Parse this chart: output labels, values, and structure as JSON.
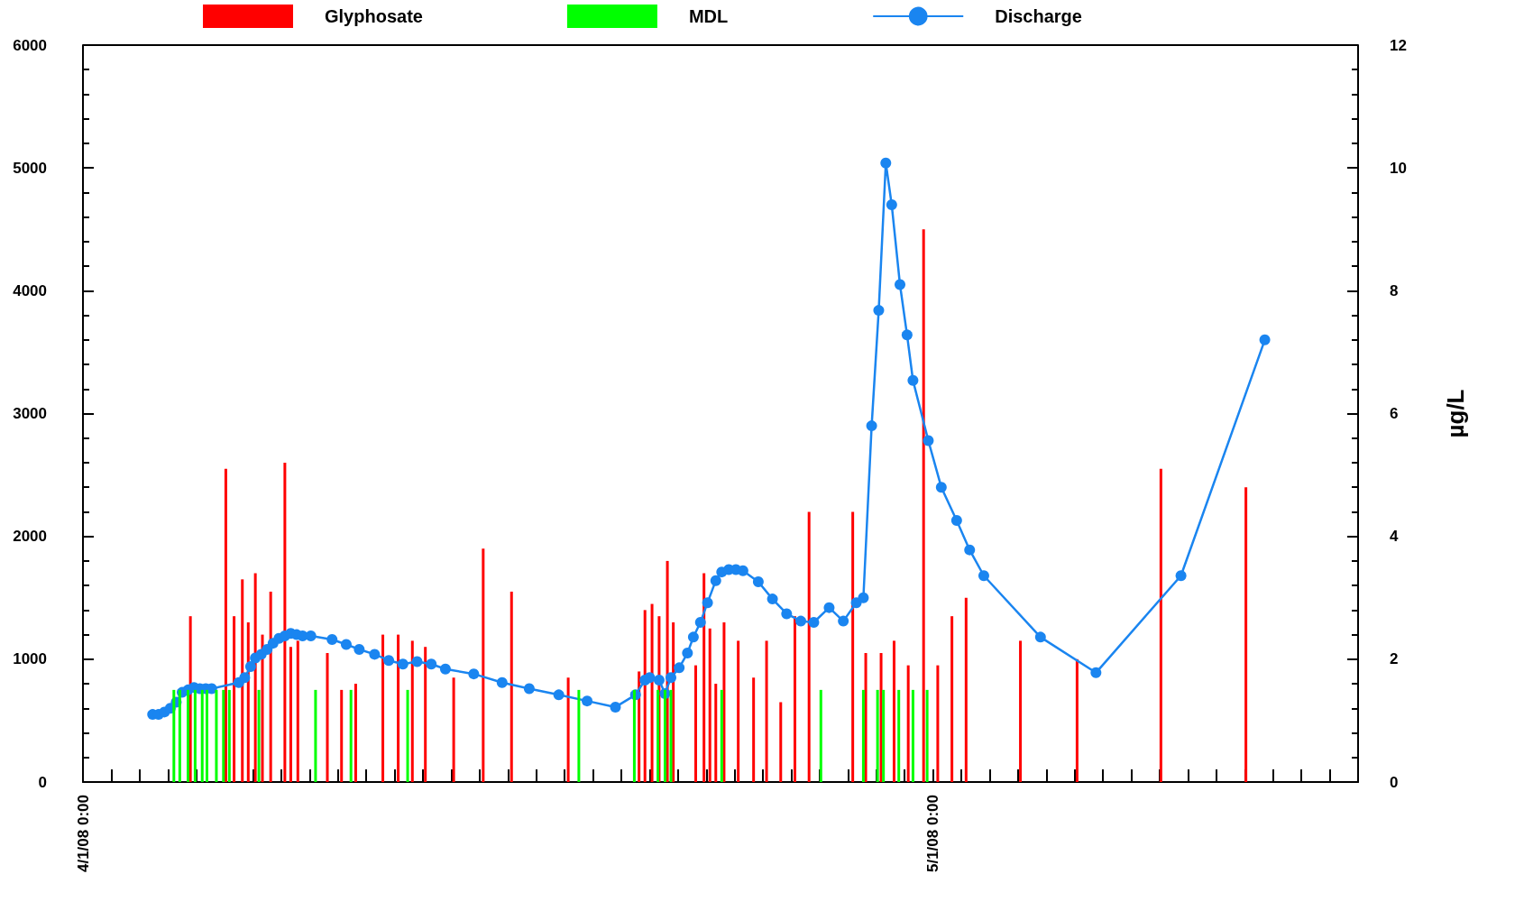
{
  "chart_data": {
    "type": "bar",
    "y2label": "µg/L",
    "legend": "top",
    "grid": false,
    "marker": "circle",
    "line_style": "solid",
    "xlim": [
      "--04-01T00:00",
      "--05-16T00:00"
    ],
    "xticks": [
      {
        "value": "--04-01T00:00",
        "label": "4/1/08 0:00"
      },
      {
        "value": "--04-02T00:00",
        "label": null
      },
      {
        "value": "--04-03T00:00",
        "label": null
      },
      {
        "value": "--04-04T00:00",
        "label": null
      },
      {
        "value": "--04-05T00:00",
        "label": null
      },
      {
        "value": "--04-06T00:00",
        "label": null
      },
      {
        "value": "--04-07T00:00",
        "label": null
      },
      {
        "value": "--04-08T00:00",
        "label": null
      },
      {
        "value": "--04-09T00:00",
        "label": null
      },
      {
        "value": "--04-10T00:00",
        "label": null
      },
      {
        "value": "--04-11T00:00",
        "label": null
      },
      {
        "value": "--04-12T00:00",
        "label": null
      },
      {
        "value": "--04-13T00:00",
        "label": null
      },
      {
        "value": "--04-14T00:00",
        "label": null
      },
      {
        "value": "--04-15T00:00",
        "label": null
      },
      {
        "value": "--04-16T00:00",
        "label": null
      },
      {
        "value": "--04-17T00:00",
        "label": null
      },
      {
        "value": "--04-18T00:00",
        "label": null
      },
      {
        "value": "--04-19T00:00",
        "label": null
      },
      {
        "value": "--04-20T00:00",
        "label": null
      },
      {
        "value": "--04-21T00:00",
        "label": null
      },
      {
        "value": "--04-22T00:00",
        "label": null
      },
      {
        "value": "--04-23T00:00",
        "label": null
      },
      {
        "value": "--04-24T00:00",
        "label": null
      },
      {
        "value": "--04-25T00:00",
        "label": null
      },
      {
        "value": "--04-26T00:00",
        "label": null
      },
      {
        "value": "--04-27T00:00",
        "label": null
      },
      {
        "value": "--04-28T00:00",
        "label": null
      },
      {
        "value": "--04-29T00:00",
        "label": null
      },
      {
        "value": "--04-30T00:00",
        "label": null
      },
      {
        "value": "--05-01T00:00",
        "label": "5/1/08 0:00"
      },
      {
        "value": "--05-02T00:00",
        "label": null
      },
      {
        "value": "--05-03T00:00",
        "label": null
      },
      {
        "value": "--05-04T00:00",
        "label": null
      },
      {
        "value": "--05-05T00:00",
        "label": null
      },
      {
        "value": "--05-06T00:00",
        "label": null
      },
      {
        "value": "--05-07T00:00",
        "label": null
      },
      {
        "value": "--05-08T00:00",
        "label": null
      },
      {
        "value": "--05-09T00:00",
        "label": null
      },
      {
        "value": "--05-10T00:00",
        "label": null
      },
      {
        "value": "--05-11T00:00",
        "label": null
      },
      {
        "value": "--05-12T00:00",
        "label": null
      },
      {
        "value": "--05-13T00:00",
        "label": null
      },
      {
        "value": "--05-14T00:00",
        "label": null
      },
      {
        "value": "--05-15T00:00",
        "label": null
      },
      {
        "value": "--05-16T00:00",
        "label": null
      }
    ],
    "ylim": [
      0,
      6000
    ],
    "yticks": [
      0,
      1000,
      2000,
      3000,
      4000,
      5000,
      6000
    ],
    "y2lim": [
      0,
      12
    ],
    "y2ticks": [
      0,
      2,
      4,
      6,
      8,
      10,
      12
    ],
    "series": [
      {
        "name": "Glyphosate",
        "axis": "y2",
        "color": "#ff0000",
        "x": [
          "--04-04T19:00",
          "--04-06T01:00",
          "--04-06T08:00",
          "--04-06T15:00",
          "--04-06T20:00",
          "--04-07T02:00",
          "--04-07T08:00",
          "--04-07T15:00",
          "--04-08T03:00",
          "--04-08T08:00",
          "--04-08T14:00",
          "--04-09T15:00",
          "--04-10T03:00",
          "--04-10T15:00",
          "--04-11T14:00",
          "--04-12T03:00",
          "--04-12T15:00",
          "--04-13T02:00",
          "--04-14T02:00",
          "--04-15T03:00",
          "--04-16T03:00",
          "--04-18T03:00",
          "--04-20T15:00",
          "--04-20T20:00",
          "--04-21T02:00",
          "--04-21T08:00",
          "--04-21T15:00",
          "--04-21T20:00",
          "--04-22T15:00",
          "--04-22T22:00",
          "--04-23T03:00",
          "--04-23T08:00",
          "--04-23T15:00",
          "--04-24T03:00",
          "--04-24T16:00",
          "--04-25T03:00",
          "--04-25T15:00",
          "--04-26T03:00",
          "--04-26T15:00",
          "--04-28T04:00",
          "--04-28T15:00",
          "--04-29T04:00",
          "--04-29T15:00",
          "--04-30T03:00",
          "--04-30T16:00",
          "--05-01T04:00",
          "--05-01T16:00",
          "--05-02T04:00",
          "--05-04T02:00",
          "--05-06T02:00",
          "--05-09T01:00",
          "--05-12T01:00"
        ],
        "values": [
          2.7,
          5.1,
          2.7,
          3.3,
          2.6,
          3.4,
          2.4,
          3.1,
          5.2,
          2.2,
          2.3,
          2.1,
          1.5,
          1.6,
          2.4,
          2.4,
          2.3,
          2.2,
          1.7,
          3.8,
          3.1,
          1.7,
          1.8,
          2.8,
          2.9,
          2.7,
          3.6,
          2.6,
          1.9,
          3.4,
          2.5,
          1.6,
          2.6,
          2.3,
          1.7,
          2.3,
          1.3,
          2.7,
          4.4,
          4.4,
          2.1,
          2.1,
          2.3,
          1.9,
          9.0,
          1.9,
          2.7,
          3.0,
          2.3,
          2.0,
          5.1,
          4.8
        ]
      },
      {
        "name": "MDL",
        "axis": "y2",
        "color": "#00ff00",
        "x": [
          "--04-04T05:00",
          "--04-04T10:00",
          "--04-04T17:00",
          "--04-04T23:00",
          "--04-05T05:00",
          "--04-05T09:00",
          "--04-05T17:00",
          "--04-05T23:00",
          "--04-06T04:00",
          "--04-07T05:00",
          "--04-09T05:00",
          "--04-10T11:00",
          "--04-12T11:00",
          "--04-18T12:00",
          "--04-20T11:00",
          "--04-21T07:00",
          "--04-21T13:00",
          "--04-21T18:00",
          "--04-23T13:00",
          "--04-27T01:00",
          "--04-28T13:00",
          "--04-29T01:00",
          "--04-29T06:00",
          "--04-29T19:00",
          "--04-30T07:00",
          "--04-30T19:00"
        ],
        "values": [
          1.5,
          1.5,
          1.5,
          1.5,
          1.5,
          1.5,
          1.5,
          1.5,
          1.5,
          1.5,
          1.5,
          1.5,
          1.5,
          1.5,
          1.5,
          1.5,
          1.5,
          1.5,
          1.5,
          1.5,
          1.5,
          1.5,
          1.5,
          1.5,
          1.5,
          1.5
        ]
      },
      {
        "name": "Discharge",
        "type": "line",
        "axis": "y",
        "color": "#1a85f0",
        "x": [
          "--04-03T11:00",
          "--04-03T16:00",
          "--04-03T21:00",
          "--04-04T02:00",
          "--04-04T07:00",
          "--04-04T12:00",
          "--04-04T17:00",
          "--04-04T22:00",
          "--04-05T03:00",
          "--04-05T08:00",
          "--04-05T13:00",
          "--04-06T12:00",
          "--04-06T17:00",
          "--04-06T22:00",
          "--04-07T02:00",
          "--04-07T07:00",
          "--04-07T12:00",
          "--04-07T17:00",
          "--04-07T22:00",
          "--04-08T03:00",
          "--04-08T08:00",
          "--04-08T13:00",
          "--04-08T18:00",
          "--04-09T01:00",
          "--04-09T19:00",
          "--04-10T07:00",
          "--04-10T18:00",
          "--04-11T07:00",
          "--04-11T19:00",
          "--04-12T07:00",
          "--04-12T19:00",
          "--04-13T07:00",
          "--04-13T19:00",
          "--04-14T19:00",
          "--04-15T19:00",
          "--04-16T18:00",
          "--04-17T19:00",
          "--04-18T19:00",
          "--04-19T19:00",
          "--04-20T12:00",
          "--04-20T20:00",
          "--04-21T00:00",
          "--04-21T08:00",
          "--04-21T13:00",
          "--04-21T18:00",
          "--04-22T01:00",
          "--04-22T08:00",
          "--04-22T13:00",
          "--04-22T19:00",
          "--04-23T01:00",
          "--04-23T08:00",
          "--04-23T13:00",
          "--04-23T19:00",
          "--04-24T01:00",
          "--04-24T07:00",
          "--04-24T20:00",
          "--04-25T08:00",
          "--04-25T20:00",
          "--04-26T08:00",
          "--04-26T19:00",
          "--04-27T08:00",
          "--04-27T20:00",
          "--04-28T07:00",
          "--04-28T13:00",
          "--04-28T20:00",
          "--04-29T02:00",
          "--04-29T08:00",
          "--04-29T13:00",
          "--04-29T20:00",
          "--04-30T02:00",
          "--04-30T07:00",
          "--04-30T20:00",
          "--05-01T07:00",
          "--05-01T20:00",
          "--05-02T07:00",
          "--05-02T19:00",
          "--05-04T19:00",
          "--05-06T18:00",
          "--05-09T18:00",
          "--05-12T17:00"
        ],
        "values": [
          550,
          550,
          570,
          600,
          650,
          730,
          750,
          770,
          760,
          760,
          760,
          810,
          850,
          940,
          1010,
          1040,
          1080,
          1130,
          1170,
          1190,
          1210,
          1200,
          1190,
          1190,
          1160,
          1120,
          1080,
          1040,
          990,
          960,
          980,
          960,
          920,
          880,
          810,
          760,
          710,
          660,
          610,
          710,
          830,
          850,
          830,
          720,
          850,
          930,
          1050,
          1180,
          1300,
          1460,
          1640,
          1710,
          1730,
          1730,
          1720,
          1630,
          1490,
          1370,
          1310,
          1300,
          1420,
          1310,
          1460,
          1500,
          2900,
          3840,
          5040,
          4700,
          4050,
          3640,
          3270,
          2780,
          2400,
          2130,
          1890,
          1680,
          1180,
          890,
          1680,
          3600
        ]
      }
    ]
  }
}
